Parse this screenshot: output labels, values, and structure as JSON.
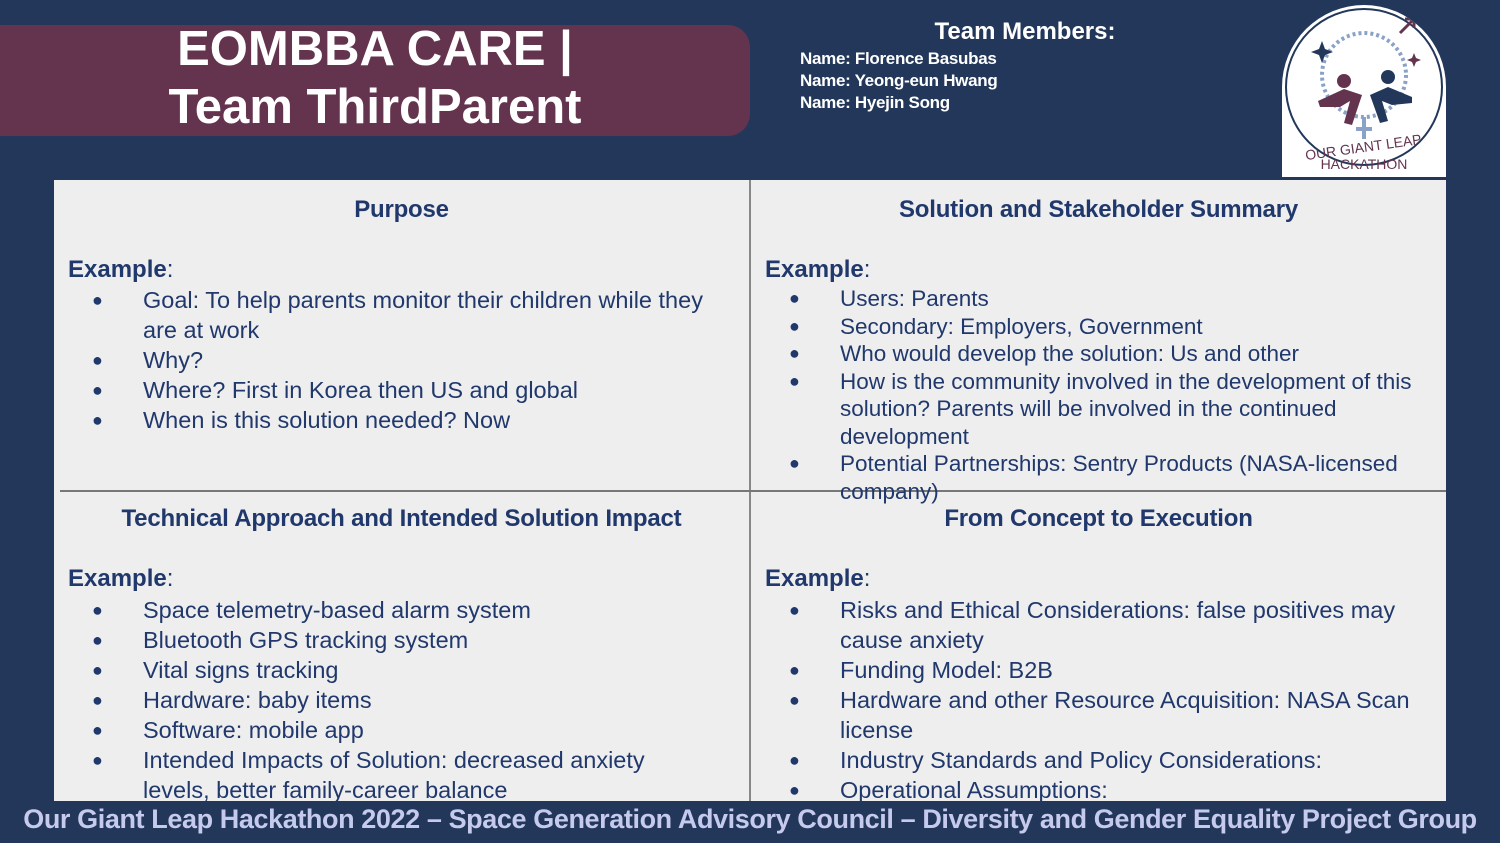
{
  "title": {
    "line1": "EOMBBA CARE |",
    "line2": "Team ThirdParent"
  },
  "team": {
    "heading": "Team Members:",
    "members": [
      "Name: Florence Basubas",
      "Name: Yeong-eun Hwang",
      "Name: Hyejin Song"
    ]
  },
  "logo": {
    "line1": "OUR GIANT LEAP",
    "line2": "HACKATHON"
  },
  "sections": [
    {
      "title": "Purpose",
      "example_label": "Example",
      "items": [
        "Goal: To help parents monitor their children while they are at work",
        "Why?",
        "Where? First in Korea then US and global",
        "When is this solution needed? Now"
      ]
    },
    {
      "title": "Solution and Stakeholder Summary",
      "example_label": "Example",
      "items": [
        "Users: Parents",
        "Secondary: Employers, Government",
        "Who would develop the solution: Us and other",
        "How is the community involved in the development of this solution? Parents will be involved in the continued development",
        "Potential Partnerships: Sentry Products (NASA-licensed company)"
      ]
    },
    {
      "title": "Technical Approach and Intended Solution Impact",
      "example_label": "Example",
      "items": [
        "Space telemetry-based alarm system",
        "Bluetooth GPS tracking system",
        "Vital signs tracking",
        "Hardware: baby items",
        "Software: mobile app",
        "Intended Impacts of Solution: decreased anxiety levels, better family-career balance"
      ]
    },
    {
      "title": "From Concept to Execution",
      "example_label": "Example",
      "items": [
        "Risks and Ethical Considerations: false positives may cause anxiety",
        "Funding Model: B2B",
        "Hardware and other Resource Acquisition: NASA Scan license",
        "Industry Standards and Policy Considerations:",
        "Operational Assumptions:"
      ]
    }
  ],
  "footer": "Our Giant Leap Hackathon 2022 – Space Generation Advisory Council – Diversity and Gender Equality Project Group",
  "colors": {
    "background": "#22375a",
    "banner": "#64344f",
    "text_blue": "#20386c",
    "panel": "#eeeeee",
    "footer_text": "#c6cbee"
  }
}
